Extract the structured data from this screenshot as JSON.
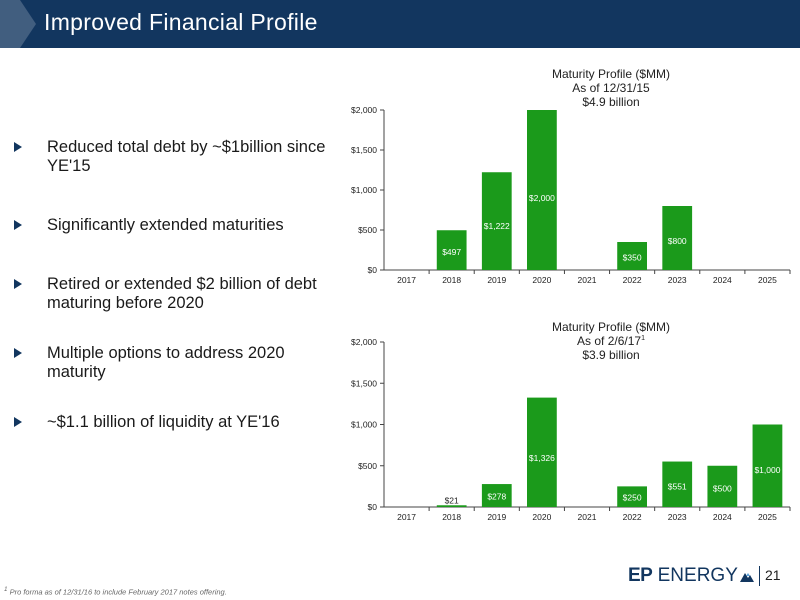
{
  "header": {
    "title": "Improved Financial Profile"
  },
  "bullets": [
    "Reduced total debt by ~$1billion since YE'15",
    "Significantly extended maturities",
    "Retired or extended $2 billion of debt maturing before 2020",
    "Multiple options to address 2020 maturity",
    "~$1.1 billion of liquidity at YE'16"
  ],
  "chart_data": [
    {
      "type": "bar",
      "title_lines": [
        "Maturity Profile ($MM)",
        "As of 12/31/15",
        "$4.9 billion"
      ],
      "categories": [
        "2017",
        "2018",
        "2019",
        "2020",
        "2021",
        "2022",
        "2023",
        "2024",
        "2025"
      ],
      "values": [
        0,
        497,
        1222,
        2000,
        0,
        350,
        800,
        0,
        0
      ],
      "data_labels": [
        "",
        "$497",
        "$1,222",
        "$2,000",
        "",
        "$350",
        "$800",
        "",
        ""
      ],
      "yticks": [
        "$0",
        "$500",
        "$1,000",
        "$1,500",
        "$2,000"
      ],
      "ylim": [
        0,
        2000
      ],
      "bar_color": "#1b9a1b",
      "xlabel": "",
      "ylabel": "",
      "grid": false
    },
    {
      "type": "bar",
      "title_lines": [
        "Maturity Profile ($MM)",
        "As of 2/6/17",
        "$3.9 billion"
      ],
      "title_superscript": "1",
      "categories": [
        "2017",
        "2018",
        "2019",
        "2020",
        "2021",
        "2022",
        "2023",
        "2024",
        "2025"
      ],
      "values": [
        0,
        21,
        278,
        1326,
        0,
        250,
        551,
        500,
        1000
      ],
      "data_labels": [
        "",
        "$21",
        "$278",
        "$1,326",
        "",
        "$250",
        "$551",
        "$500",
        "$1,000"
      ],
      "yticks": [
        "$0",
        "$500",
        "$1,000",
        "$1,500",
        "$2,000"
      ],
      "ylim": [
        0,
        2000
      ],
      "bar_color": "#1b9a1b",
      "xlabel": "",
      "ylabel": "",
      "grid": false
    }
  ],
  "footer": {
    "footnote_marker": "1",
    "footnote": "Pro forma as of 12/31/16 to include February 2017 notes offering.",
    "logo_ep": "EP",
    "logo_energy": " ENERGY",
    "page_number": "21"
  },
  "colors": {
    "header_bg": "#12365f",
    "bar": "#1b9a1b",
    "bullet_marker": "#12365f"
  },
  "icons": {
    "bullet": "triangle-right-icon",
    "logo": "ep-energy-logo"
  }
}
